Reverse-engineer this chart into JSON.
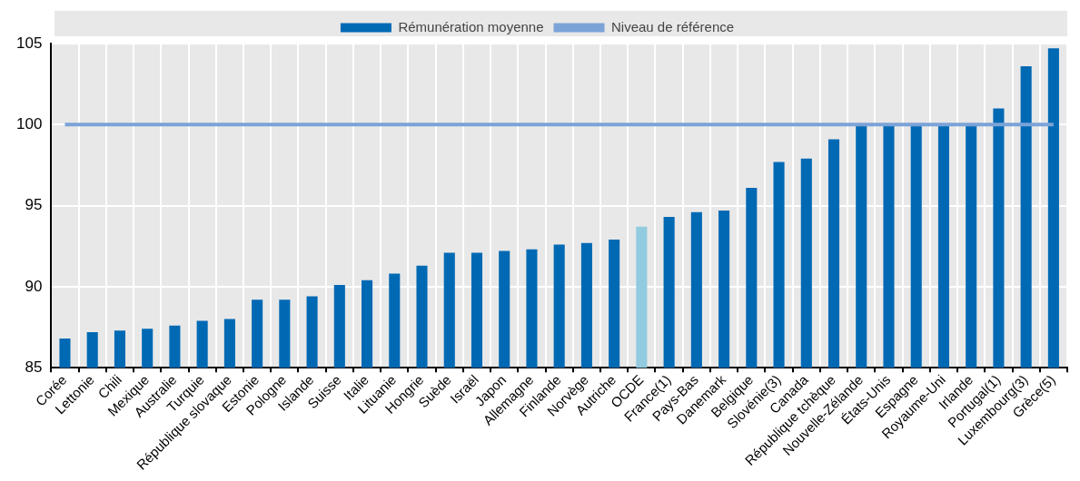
{
  "chart_data": {
    "type": "bar",
    "categories": [
      "Corée",
      "Lettonie",
      "Chili",
      "Mexique",
      "Australie",
      "Turquie",
      "République slovaque",
      "Estonie",
      "Pologne",
      "Islande",
      "Suisse",
      "Italie",
      "Lituanie",
      "Hongrie",
      "Suède",
      "Israël",
      "Japon",
      "Allemagne",
      "Finlande",
      "Norvège",
      "Autriche",
      "OCDE",
      "France(1)",
      "Pays-Bas",
      "Danemark",
      "Belgique",
      "Slovénie(3)",
      "Canada",
      "République tchèque",
      "Nouvelle-Zélande",
      "États-Unis",
      "Espagne",
      "Royaume-Uni",
      "Irlande",
      "Portugal(1)",
      "Luxembourg(3)",
      "Grèce(5)"
    ],
    "series": [
      {
        "name": "Rémunération moyenne",
        "color": "#0069b4",
        "colors": [
          "#0069b4",
          "#0069b4",
          "#0069b4",
          "#0069b4",
          "#0069b4",
          "#0069b4",
          "#0069b4",
          "#0069b4",
          "#0069b4",
          "#0069b4",
          "#0069b4",
          "#0069b4",
          "#0069b4",
          "#0069b4",
          "#0069b4",
          "#0069b4",
          "#0069b4",
          "#0069b4",
          "#0069b4",
          "#0069b4",
          "#0069b4",
          "#92cbdf",
          "#0069b4",
          "#0069b4",
          "#0069b4",
          "#0069b4",
          "#0069b4",
          "#0069b4",
          "#0069b4",
          "#0069b4",
          "#0069b4",
          "#0069b4",
          "#0069b4",
          "#0069b4",
          "#0069b4",
          "#0069b4",
          "#0069b4"
        ],
        "values": [
          86.8,
          87.2,
          87.3,
          87.4,
          87.6,
          87.9,
          88.0,
          89.2,
          89.2,
          89.4,
          90.1,
          90.4,
          90.8,
          91.3,
          92.1,
          92.1,
          92.2,
          92.3,
          92.6,
          92.7,
          92.9,
          93.7,
          94.3,
          94.6,
          94.7,
          96.1,
          97.7,
          97.9,
          99.1,
          100,
          100,
          100,
          100,
          100,
          101.0,
          103.6,
          104.7
        ]
      },
      {
        "name": "Niveau de référence",
        "type": "line",
        "color": "#7ba3d8",
        "values": [
          100,
          100,
          100,
          100,
          100,
          100,
          100,
          100,
          100,
          100,
          100,
          100,
          100,
          100,
          100,
          100,
          100,
          100,
          100,
          100,
          100,
          100,
          100,
          100,
          100,
          100,
          100,
          100,
          100,
          100,
          100,
          100,
          100,
          100,
          100,
          100,
          100
        ]
      }
    ],
    "ylim": [
      85,
      105
    ],
    "yticks": [
      85,
      90,
      95,
      100,
      105
    ],
    "grid": true,
    "legend": "top",
    "marker": "none"
  }
}
